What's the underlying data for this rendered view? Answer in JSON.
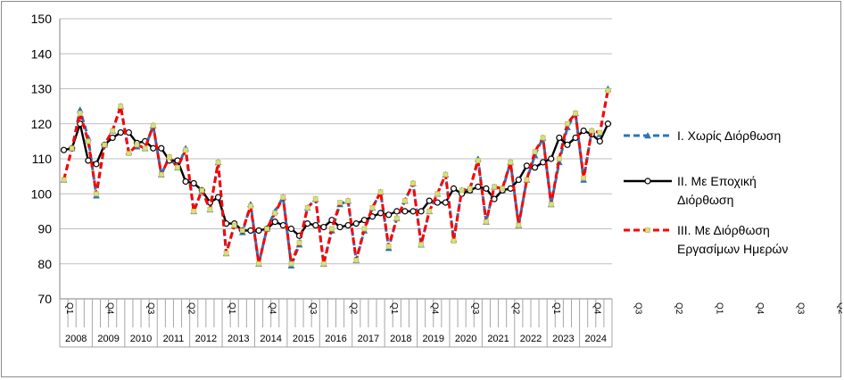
{
  "chart_data": {
    "type": "line",
    "ylim": [
      70,
      150
    ],
    "yticks": [
      70,
      80,
      90,
      100,
      110,
      120,
      130,
      140,
      150
    ],
    "grid": "horizontal",
    "legend_position": "right",
    "years": [
      "2008",
      "2009",
      "2010",
      "2011",
      "2012",
      "2013",
      "2014",
      "2015",
      "2016",
      "2017",
      "2018",
      "2019",
      "2020",
      "2021",
      "2022",
      "2023",
      "2024"
    ],
    "quarter_tick_labels": [
      "Q1",
      "Q4",
      "Q3",
      "Q2",
      "Q1",
      "Q4",
      "Q3",
      "Q2",
      "Q1",
      "Q4",
      "Q3",
      "Q2",
      "Q1",
      "Q4",
      "Q3",
      "Q2",
      "Q1",
      "Q4",
      "Q3",
      "Q2",
      "Q1",
      "Q4",
      "Q3",
      "Q2",
      "Q1",
      "Q4",
      "Q3"
    ],
    "colors": {
      "unadjusted": "#2e75b6",
      "seasonal": "#000000",
      "working_day": "#ff0000",
      "marker_fill": "#c9e58a",
      "grid": "#bfbfbf"
    },
    "series": [
      {
        "name": "Ι. Χωρίς Διόρθωση",
        "values": [
          104,
          113,
          124,
          116,
          99.5,
          114,
          118,
          125,
          112,
          113.5,
          113,
          119.5,
          105.5,
          110.5,
          107.5,
          113,
          95,
          101,
          95.5,
          109,
          83,
          91,
          89,
          97,
          80,
          90,
          95,
          99,
          79.5,
          85.5,
          96,
          98.5,
          80,
          89.5,
          97,
          98,
          81,
          89.5,
          96,
          100.5,
          84.5,
          93,
          98,
          103,
          85.5,
          95,
          100,
          105.5,
          87,
          101,
          101,
          110,
          92,
          102,
          101,
          109,
          91,
          104,
          111,
          116,
          97,
          109,
          119,
          123,
          104,
          118,
          117,
          130
        ]
      },
      {
        "name": "ΙΙ. Με Εποχική Διόρθωση",
        "values": [
          112.5,
          113,
          120,
          109.5,
          108.5,
          114,
          116,
          117.5,
          117.5,
          114.5,
          115,
          113,
          113,
          109.5,
          109.5,
          103.5,
          103,
          101,
          97.5,
          99,
          91.5,
          91.5,
          89.5,
          89.5,
          89.5,
          90,
          92,
          91,
          90,
          88,
          91.5,
          91,
          90.5,
          92.5,
          90.5,
          91,
          91.5,
          92.5,
          93.5,
          94.5,
          94,
          95,
          95,
          95,
          95,
          98,
          97.5,
          97.5,
          101.5,
          100,
          101,
          102,
          101.5,
          98.5,
          101,
          101.5,
          104,
          108,
          107.5,
          109,
          110,
          116,
          114,
          116,
          118,
          117,
          115,
          120
        ]
      },
      {
        "name": "ΙΙΙ. Με Διόρθωση Εργασίμων Ημερών",
        "values": [
          104,
          113,
          123,
          115,
          100,
          114,
          118,
          125,
          111.5,
          114,
          113,
          119.5,
          105.5,
          110.5,
          107.5,
          112.5,
          95,
          101,
          95.5,
          109,
          83,
          91,
          89.5,
          96.5,
          80,
          90,
          94.5,
          99,
          80,
          86,
          96,
          98.5,
          80,
          90,
          97.5,
          98,
          81,
          90,
          96,
          100.5,
          85,
          93,
          98,
          103,
          85.5,
          95,
          100,
          105.5,
          86.5,
          101,
          101.5,
          109.5,
          92,
          102,
          101.5,
          109,
          91,
          104,
          112,
          116,
          97,
          110,
          120,
          123,
          104.5,
          118,
          117.5,
          129.5
        ]
      }
    ]
  }
}
